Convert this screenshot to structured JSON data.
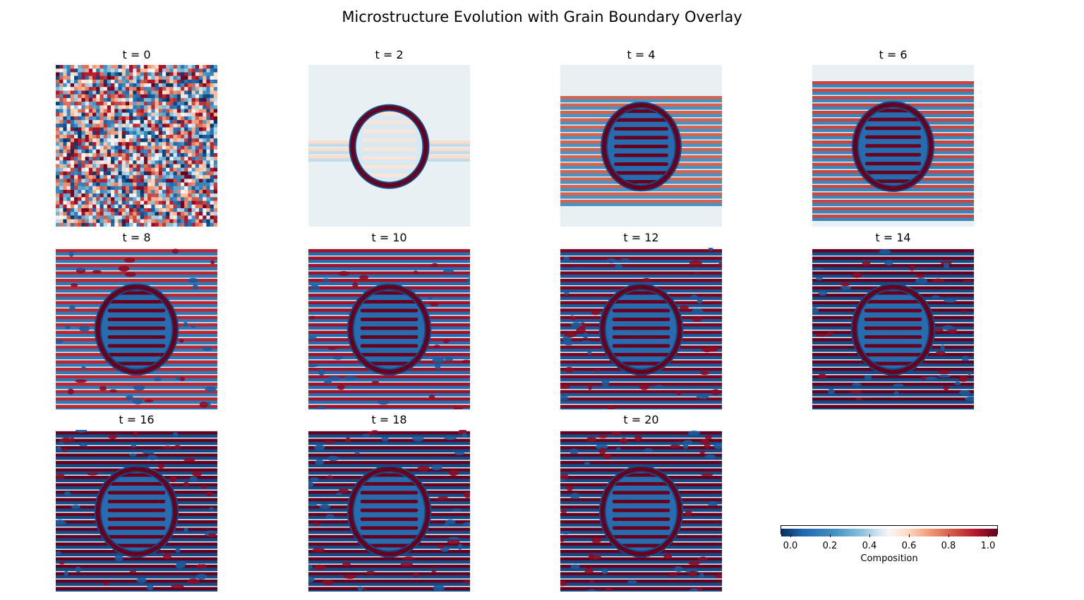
{
  "figure": {
    "title": "Microstructure Evolution with Grain Boundary Overlay"
  },
  "chart_data": {
    "type": "heatmap",
    "title": "Microstructure Evolution with Grain Boundary Overlay",
    "colormap": "RdBu_r",
    "colors": {
      "low": "#053061",
      "mid": "#f7f7f7",
      "high": "#67001f"
    },
    "panels": [
      {
        "title": "t = 0",
        "time": 0,
        "pattern": "random noise"
      },
      {
        "title": "t = 2",
        "time": 2,
        "pattern": "thin ring with faint horizontal stripes"
      },
      {
        "title": "t = 4",
        "time": 4,
        "pattern": "ring with horizontal lamellae"
      },
      {
        "title": "t = 6",
        "time": 6,
        "pattern": "ring with horizontal lamellae"
      },
      {
        "title": "t = 8",
        "time": 8,
        "pattern": "ring with lamellae spreading"
      },
      {
        "title": "t = 10",
        "time": 10,
        "pattern": "ring with lamellae spreading"
      },
      {
        "title": "t = 12",
        "time": 12,
        "pattern": "ring with lamellae filling"
      },
      {
        "title": "t = 14",
        "time": 14,
        "pattern": "ring with lamellae filling"
      },
      {
        "title": "t = 16",
        "time": 16,
        "pattern": "fully developed lamellae"
      },
      {
        "title": "t = 18",
        "time": 18,
        "pattern": "fully developed lamellae"
      },
      {
        "title": "t = 20",
        "time": 20,
        "pattern": "fully developed lamellae"
      }
    ],
    "colorbar": {
      "label": "Composition",
      "range": [
        -0.05,
        1.05
      ],
      "ticks": [
        "0.0",
        "0.2",
        "0.4",
        "0.6",
        "0.8",
        "1.0"
      ],
      "tick_values": [
        0.0,
        0.2,
        0.4,
        0.6,
        0.8,
        1.0
      ],
      "orientation": "horizontal"
    }
  }
}
